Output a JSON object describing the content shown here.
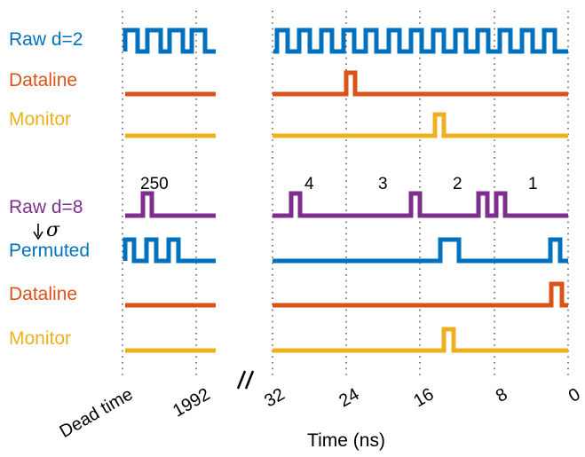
{
  "colors": {
    "blue": "#0072BD",
    "orange": "#D95319",
    "yellow": "#EDB120",
    "purple": "#7E2F8E",
    "grid": "#333333",
    "text": "#000000"
  },
  "top_panel": {
    "rows": [
      {
        "label": "Raw d=2",
        "color": "#0072BD"
      },
      {
        "label": "Dataline",
        "color": "#D95319"
      },
      {
        "label": "Monitor",
        "color": "#EDB120"
      }
    ]
  },
  "bottom_panel": {
    "rows": [
      {
        "label": "Raw d=8",
        "color": "#7E2F8E"
      },
      {
        "label": "Permuted",
        "color": "#0072BD"
      },
      {
        "label": "Dataline",
        "color": "#D95319"
      },
      {
        "label": "Monitor",
        "color": "#EDB120"
      }
    ],
    "permutation_symbol": "σ",
    "interval_labels": [
      "250",
      "4",
      "3",
      "2",
      "1"
    ]
  },
  "x_axis": {
    "title": "Time (ns)",
    "tick_labels": [
      "Dead time",
      "1992",
      "32",
      "24",
      "16",
      "8",
      "0"
    ],
    "break_marker": "//"
  }
}
